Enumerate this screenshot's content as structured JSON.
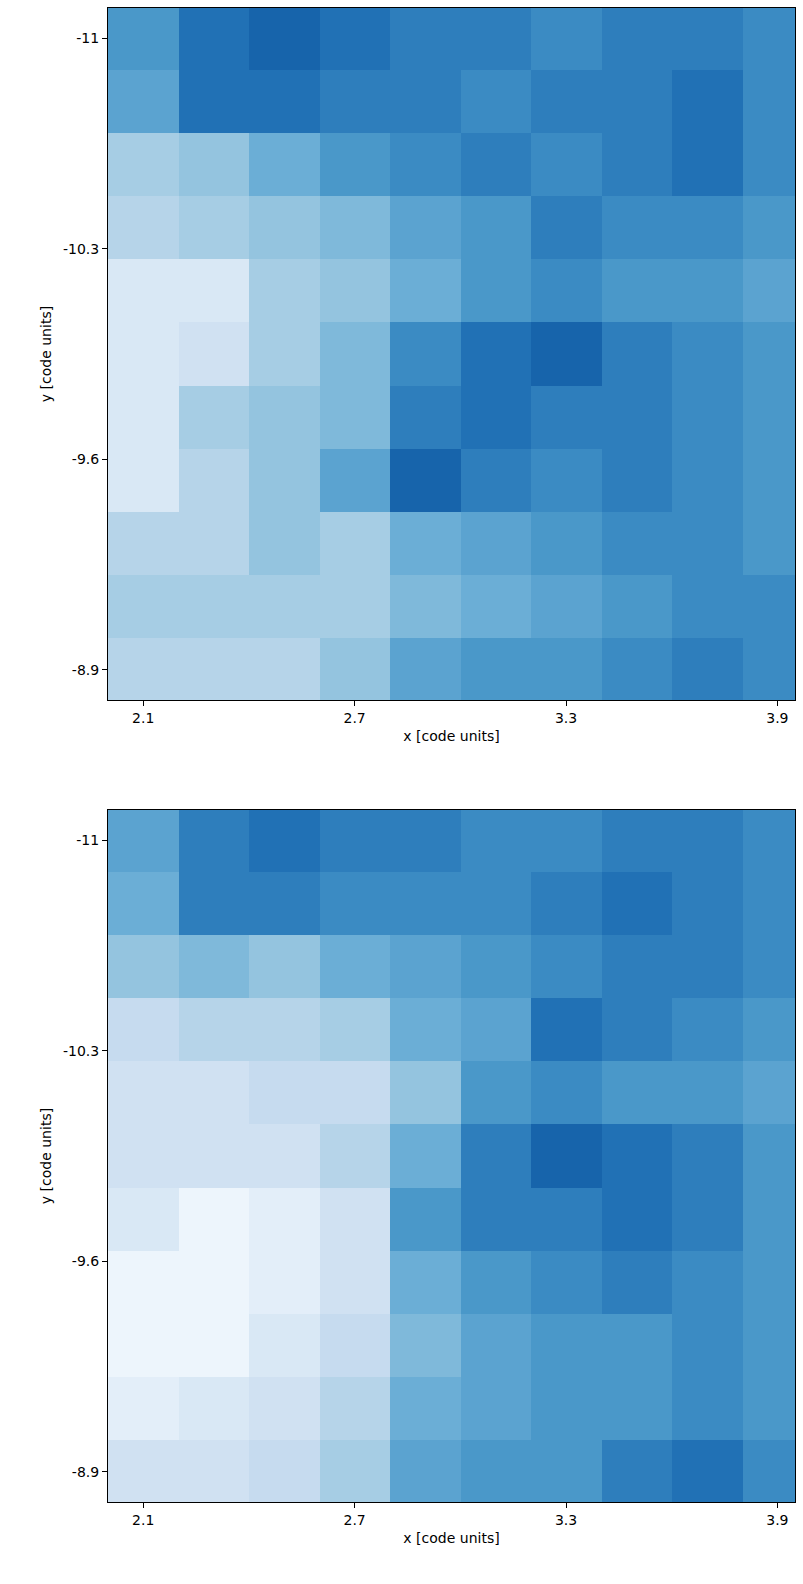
{
  "chart_data": [
    {
      "type": "heatmap",
      "xlabel": "x [code units]",
      "ylabel": "y [code units]",
      "xlim": [
        2.0,
        3.95
      ],
      "ylim": [
        -8.8,
        -11.1
      ],
      "xticks": [
        2.1,
        2.7,
        3.3,
        3.9
      ],
      "yticks": [
        -11,
        -10.3,
        -9.6,
        -8.9
      ],
      "zlim": [
        0,
        1
      ],
      "x": [
        2.1,
        2.3,
        2.5,
        2.7,
        2.9,
        3.1,
        3.3,
        3.5,
        3.7,
        3.9
      ],
      "y": [
        -11.0,
        -10.79,
        -10.58,
        -10.37,
        -10.16,
        -9.95,
        -9.74,
        -9.53,
        -9.32,
        -9.11,
        -8.9
      ],
      "z": [
        [
          0.6,
          0.75,
          0.8,
          0.75,
          0.7,
          0.7,
          0.65,
          0.7,
          0.7,
          0.65
        ],
        [
          0.55,
          0.75,
          0.75,
          0.7,
          0.7,
          0.65,
          0.7,
          0.7,
          0.75,
          0.65
        ],
        [
          0.35,
          0.4,
          0.5,
          0.6,
          0.65,
          0.7,
          0.65,
          0.7,
          0.75,
          0.65
        ],
        [
          0.3,
          0.35,
          0.4,
          0.45,
          0.55,
          0.6,
          0.7,
          0.65,
          0.65,
          0.6
        ],
        [
          0.15,
          0.15,
          0.35,
          0.4,
          0.5,
          0.6,
          0.65,
          0.6,
          0.6,
          0.55
        ],
        [
          0.15,
          0.2,
          0.35,
          0.45,
          0.65,
          0.75,
          0.8,
          0.7,
          0.65,
          0.6
        ],
        [
          0.15,
          0.35,
          0.4,
          0.45,
          0.7,
          0.75,
          0.7,
          0.7,
          0.65,
          0.6
        ],
        [
          0.15,
          0.3,
          0.4,
          0.55,
          0.8,
          0.7,
          0.65,
          0.7,
          0.65,
          0.6
        ],
        [
          0.3,
          0.3,
          0.4,
          0.35,
          0.5,
          0.55,
          0.6,
          0.65,
          0.65,
          0.6
        ],
        [
          0.35,
          0.35,
          0.35,
          0.35,
          0.45,
          0.5,
          0.55,
          0.6,
          0.65,
          0.65
        ],
        [
          0.3,
          0.3,
          0.3,
          0.4,
          0.55,
          0.6,
          0.6,
          0.65,
          0.7,
          0.65
        ]
      ]
    },
    {
      "type": "heatmap",
      "xlabel": "x [code units]",
      "ylabel": "y [code units]",
      "xlim": [
        2.0,
        3.95
      ],
      "ylim": [
        -8.8,
        -11.1
      ],
      "xticks": [
        2.1,
        2.7,
        3.3,
        3.9
      ],
      "yticks": [
        -11,
        -10.3,
        -9.6,
        -8.9
      ],
      "zlim": [
        0,
        1
      ],
      "x": [
        2.1,
        2.3,
        2.5,
        2.7,
        2.9,
        3.1,
        3.3,
        3.5,
        3.7,
        3.9
      ],
      "y": [
        -11.0,
        -10.79,
        -10.58,
        -10.37,
        -10.16,
        -9.95,
        -9.74,
        -9.53,
        -9.32,
        -9.11,
        -8.9
      ],
      "z": [
        [
          0.55,
          0.7,
          0.75,
          0.7,
          0.7,
          0.65,
          0.65,
          0.7,
          0.7,
          0.65
        ],
        [
          0.5,
          0.7,
          0.7,
          0.65,
          0.65,
          0.65,
          0.7,
          0.75,
          0.7,
          0.65
        ],
        [
          0.4,
          0.45,
          0.4,
          0.5,
          0.55,
          0.6,
          0.65,
          0.7,
          0.7,
          0.65
        ],
        [
          0.25,
          0.3,
          0.3,
          0.35,
          0.5,
          0.55,
          0.75,
          0.7,
          0.65,
          0.6
        ],
        [
          0.2,
          0.2,
          0.25,
          0.25,
          0.4,
          0.6,
          0.65,
          0.6,
          0.6,
          0.55
        ],
        [
          0.2,
          0.2,
          0.2,
          0.3,
          0.5,
          0.7,
          0.8,
          0.75,
          0.7,
          0.6
        ],
        [
          0.15,
          0.05,
          0.1,
          0.2,
          0.6,
          0.7,
          0.7,
          0.75,
          0.7,
          0.6
        ],
        [
          0.05,
          0.05,
          0.1,
          0.2,
          0.5,
          0.6,
          0.65,
          0.7,
          0.65,
          0.6
        ],
        [
          0.05,
          0.05,
          0.15,
          0.25,
          0.45,
          0.55,
          0.6,
          0.6,
          0.65,
          0.6
        ],
        [
          0.1,
          0.15,
          0.2,
          0.3,
          0.5,
          0.55,
          0.6,
          0.6,
          0.65,
          0.6
        ],
        [
          0.2,
          0.2,
          0.25,
          0.35,
          0.55,
          0.6,
          0.6,
          0.7,
          0.75,
          0.65
        ]
      ]
    }
  ]
}
